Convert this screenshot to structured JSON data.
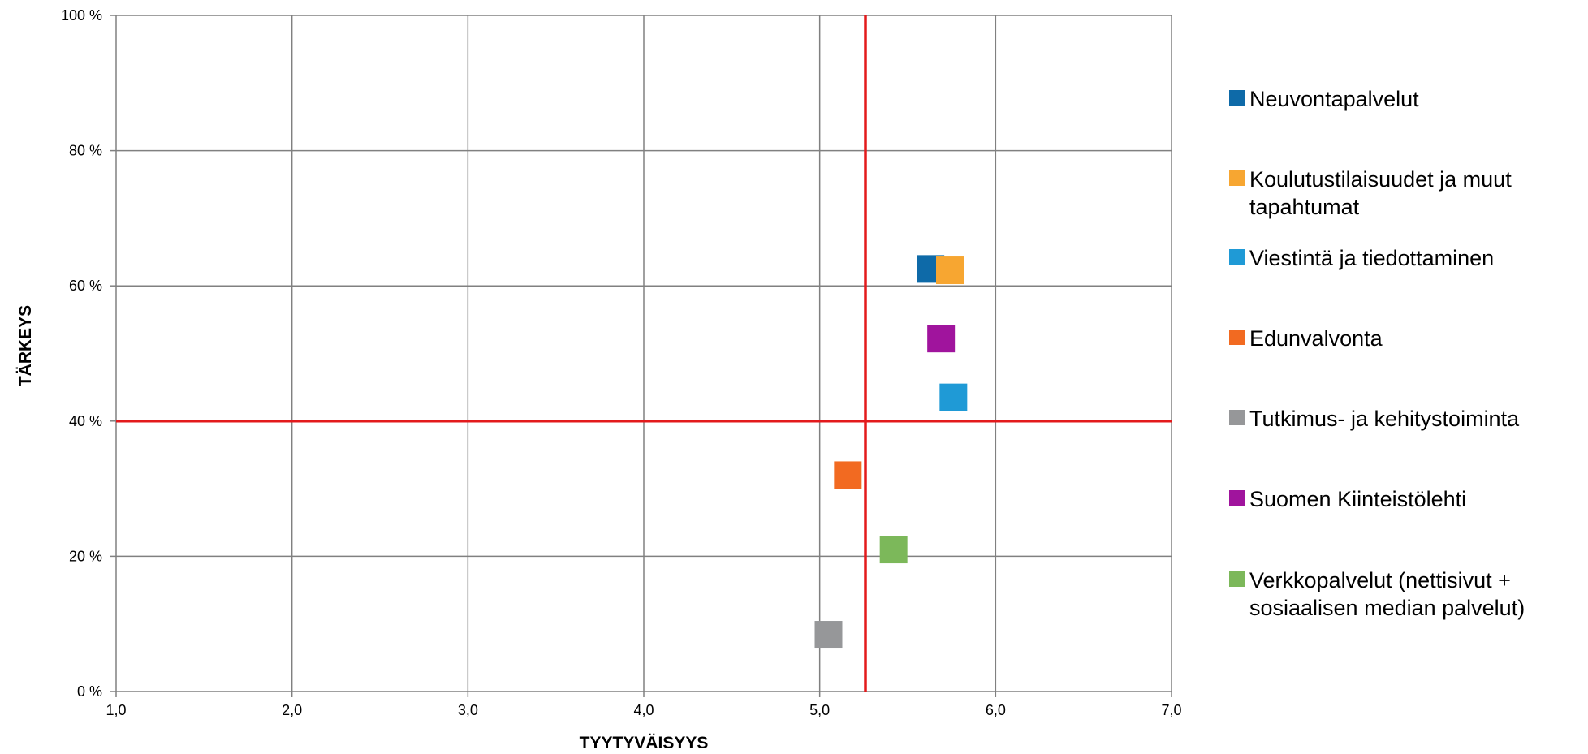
{
  "chart_data": {
    "type": "scatter",
    "xlabel": "TYYTYVÄISYYS",
    "ylabel": "TÄRKEYS",
    "xlim": [
      1.0,
      7.0
    ],
    "ylim": [
      0,
      100
    ],
    "x_ticks": [
      "1,0",
      "2,0",
      "3,0",
      "4,0",
      "5,0",
      "6,0",
      "7,0"
    ],
    "y_ticks": [
      "0 %",
      "20 %",
      "40 %",
      "60 %",
      "80 %",
      "100 %"
    ],
    "grid": true,
    "reference_lines": {
      "x": 5.26,
      "y": 40,
      "color": "#e31a1c"
    },
    "legend_position": "right",
    "series": [
      {
        "name": "Neuvontapalvelut",
        "x": 5.63,
        "y": 62.5,
        "color": "#0e6aa8"
      },
      {
        "name": "Koulutustilaisuudet ja muut tapahtumat",
        "x": 5.74,
        "y": 62.3,
        "color": "#f7a631"
      },
      {
        "name": "Viestintä ja tiedottaminen",
        "x": 5.76,
        "y": 43.5,
        "color": "#1f9ad6"
      },
      {
        "name": "Edunvalvonta",
        "x": 5.16,
        "y": 32.0,
        "color": "#f26a21"
      },
      {
        "name": "Tutkimus- ja kehitystoiminta",
        "x": 5.05,
        "y": 8.4,
        "color": "#969799"
      },
      {
        "name": "Suomen Kiinteistölehti",
        "x": 5.69,
        "y": 52.2,
        "color": "#a0149d"
      },
      {
        "name": "Verkkopalvelut (nettisivut + sosiaalisen median palvelut)",
        "x": 5.42,
        "y": 21.0,
        "color": "#7cb85a"
      }
    ],
    "legend_lines": [
      [
        "Neuvontapalvelut"
      ],
      [
        "Koulutustilaisuudet ja muut",
        "tapahtumat"
      ],
      [
        "Viestintä ja tiedottaminen"
      ],
      [
        "Edunvalvonta"
      ],
      [
        "Tutkimus- ja kehitystoiminta"
      ],
      [
        "Suomen Kiinteistölehti"
      ],
      [
        "Verkkopalvelut (nettisivut +",
        "sosiaalisen median palvelut)"
      ]
    ]
  }
}
